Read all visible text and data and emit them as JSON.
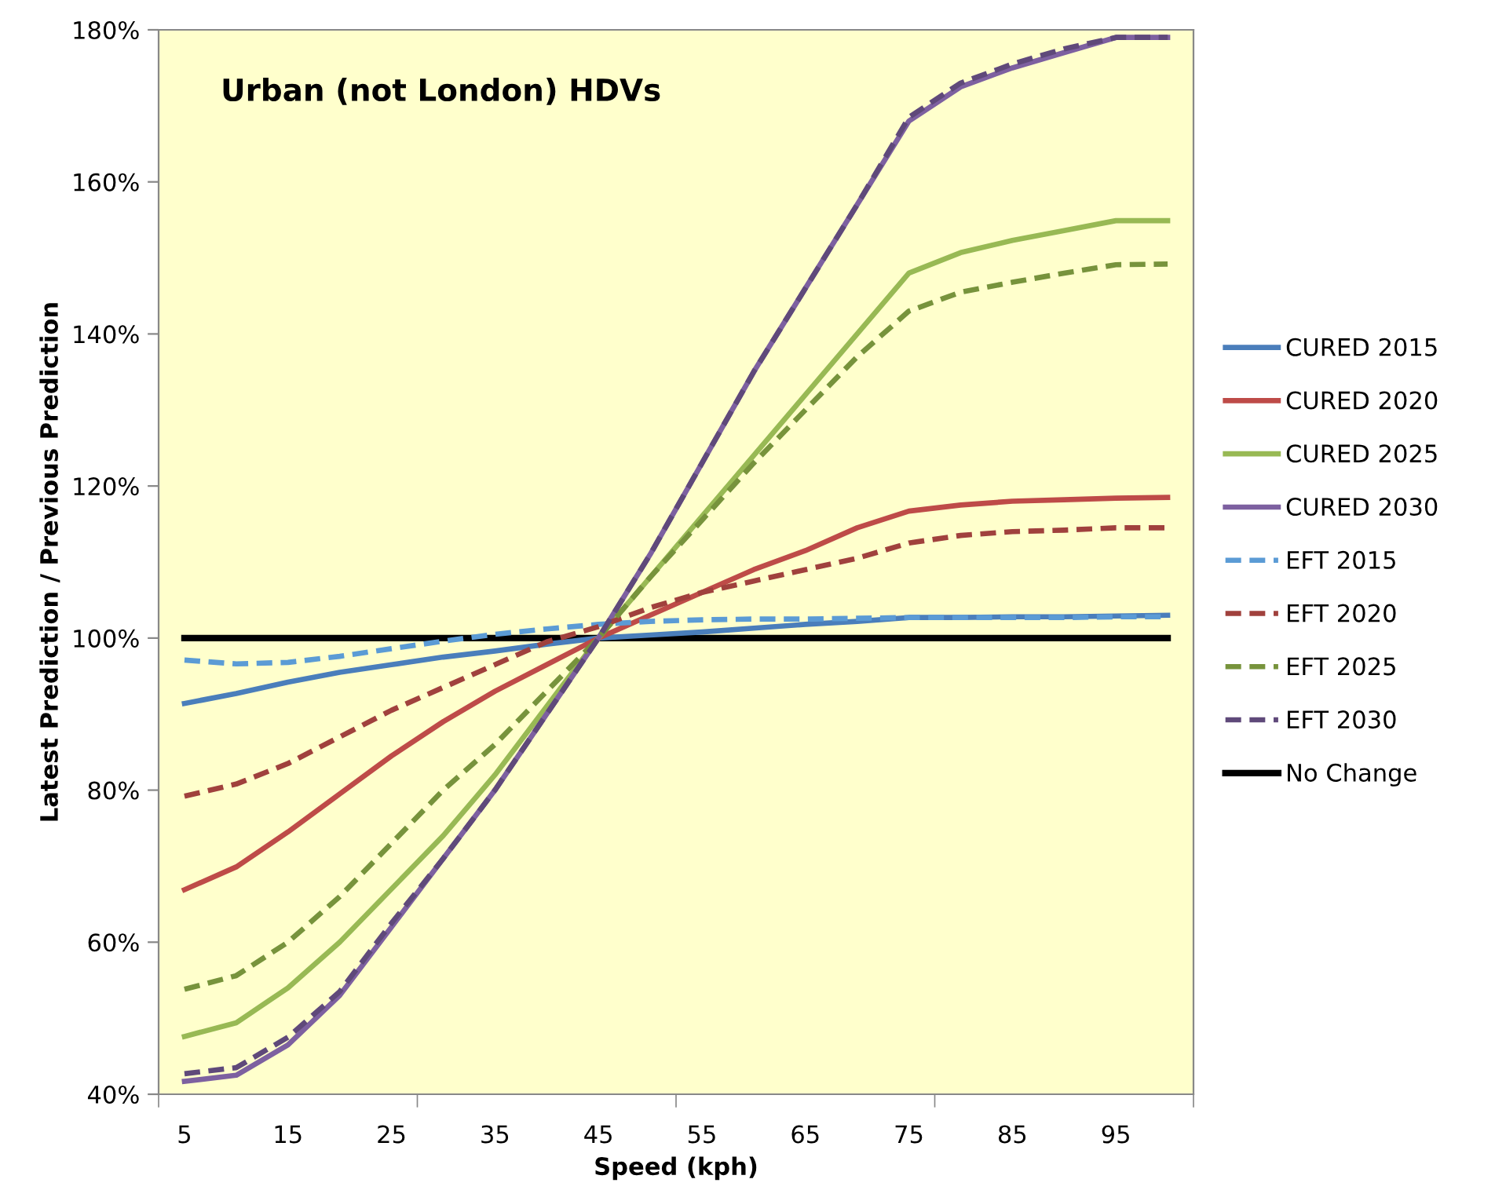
{
  "chart_data": {
    "type": "line",
    "title": "Urban (not London) HDVs",
    "xlabel": "Speed (kph)",
    "ylabel": "Latest Prediction / Previous Prediction",
    "categories": [
      "5",
      null,
      "15",
      null,
      "25",
      null,
      "35",
      null,
      "45",
      null,
      "55",
      null,
      "65",
      null,
      "75",
      null,
      "85",
      null,
      "95",
      null
    ],
    "ylim": [
      40,
      180
    ],
    "yticks": [
      {
        "value": 40,
        "label": "40%"
      },
      {
        "value": 60,
        "label": "60%"
      },
      {
        "value": 80,
        "label": "80%"
      },
      {
        "value": 100,
        "label": "100%"
      },
      {
        "value": 120,
        "label": "120%"
      },
      {
        "value": 140,
        "label": "140%"
      },
      {
        "value": 160,
        "label": "160%"
      },
      {
        "value": 180,
        "label": "180%"
      }
    ],
    "grid": false,
    "legend": "right",
    "marker": "none",
    "series": [
      {
        "name": "CURED 2015",
        "color": "#4a7ebb",
        "line_style": "solid",
        "values": [
          91.4,
          92.7,
          94.2,
          95.5,
          96.5,
          97.5,
          98.3,
          99.2,
          100,
          100.4,
          100.8,
          101.3,
          101.8,
          102.2,
          102.7,
          102.7,
          102.8,
          102.8,
          102.9,
          103
        ]
      },
      {
        "name": "CURED 2020",
        "color": "#be4b48",
        "line_style": "solid",
        "values": [
          66.9,
          69.9,
          74.5,
          79.5,
          84.5,
          89,
          93,
          96.5,
          100,
          103,
          106,
          109,
          111.5,
          114.5,
          116.7,
          117.5,
          118,
          118.2,
          118.4,
          118.5
        ]
      },
      {
        "name": "CURED 2025",
        "color": "#98b954",
        "line_style": "solid",
        "values": [
          47.6,
          49.4,
          54,
          60,
          67,
          74,
          82,
          91,
          100,
          108,
          116,
          124,
          132,
          140,
          148,
          150.7,
          152.3,
          153.6,
          154.9,
          154.9
        ]
      },
      {
        "name": "CURED 2030",
        "color": "#7d60a0",
        "line_style": "solid",
        "values": [
          41.7,
          42.5,
          46.5,
          53,
          62,
          71,
          80,
          90,
          100,
          111,
          123,
          135,
          146,
          157,
          168,
          172.5,
          175,
          177,
          179,
          179
        ]
      },
      {
        "name": "EFT 2015",
        "color": "#5b9bd5",
        "line_style": "dashed",
        "values": [
          97.1,
          96.6,
          96.8,
          97.6,
          98.6,
          99.6,
          100.5,
          101.2,
          101.8,
          102.2,
          102.4,
          102.5,
          102.5,
          102.6,
          102.7,
          102.7,
          102.7,
          102.7,
          102.8,
          102.8
        ]
      },
      {
        "name": "EFT 2020",
        "color": "#a0413d",
        "line_style": "dashed",
        "values": [
          79.2,
          80.8,
          83.5,
          87,
          90.5,
          93.5,
          96.5,
          99.5,
          101.5,
          104,
          106,
          107.5,
          109,
          110.5,
          112.5,
          113.5,
          114,
          114.2,
          114.5,
          114.5
        ]
      },
      {
        "name": "EFT 2025",
        "color": "#77933c",
        "line_style": "dashed",
        "values": [
          53.8,
          55.6,
          60,
          66,
          73,
          80,
          86,
          93,
          100,
          108,
          115.5,
          123,
          130,
          137,
          143,
          145.5,
          146.8,
          148,
          149.1,
          149.2
        ]
      },
      {
        "name": "EFT 2030",
        "color": "#5f497a",
        "line_style": "dashed",
        "values": [
          42.7,
          43.5,
          47.5,
          53.5,
          62.5,
          71,
          80,
          90,
          100,
          111,
          123,
          135,
          146,
          157,
          168.5,
          173,
          175.5,
          177.5,
          179,
          179
        ]
      },
      {
        "name": "No Change",
        "color": "#000000",
        "line_style": "solid",
        "values": [
          100,
          100,
          100,
          100,
          100,
          100,
          100,
          100,
          100,
          100,
          100,
          100,
          100,
          100,
          100,
          100,
          100,
          100,
          100,
          100
        ]
      }
    ]
  }
}
